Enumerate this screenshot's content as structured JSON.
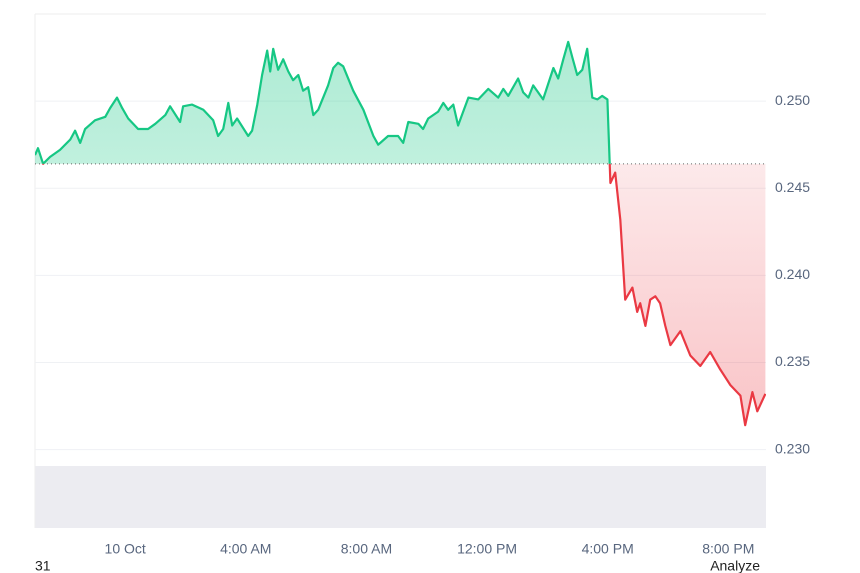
{
  "chart_data": {
    "type": "line",
    "x": [
      -2.99,
      -2.89,
      -2.72,
      -2.49,
      -2.16,
      -1.82,
      -1.66,
      -1.49,
      -1.33,
      -1.0,
      -0.66,
      -0.5,
      -0.27,
      -0.1,
      0.1,
      0.43,
      0.76,
      1.0,
      1.33,
      1.49,
      1.82,
      1.92,
      2.22,
      2.59,
      2.92,
      3.08,
      3.25,
      3.42,
      3.55,
      3.71,
      4.08,
      4.21,
      4.38,
      4.54,
      4.71,
      4.81,
      4.91,
      5.07,
      5.24,
      5.41,
      5.57,
      5.74,
      5.9,
      6.07,
      6.24,
      6.4,
      6.73,
      6.9,
      7.06,
      7.23,
      7.56,
      7.9,
      8.23,
      8.39,
      8.72,
      9.05,
      9.22,
      9.39,
      9.72,
      9.88,
      10.05,
      10.38,
      10.55,
      10.71,
      10.88,
      11.04,
      11.21,
      11.38,
      11.71,
      12.04,
      12.37,
      12.54,
      12.7,
      13.03,
      13.2,
      13.37,
      13.53,
      13.86,
      14.2,
      14.36,
      14.53,
      14.69,
      14.83,
      14.99,
      15.16,
      15.32,
      15.49,
      15.66,
      15.82,
      15.99,
      16.09,
      16.25,
      16.42,
      16.58,
      16.82,
      16.98,
      17.08,
      17.25,
      17.41,
      17.58,
      17.74,
      17.91,
      18.08,
      18.41,
      18.74,
      19.07,
      19.4,
      19.73,
      20.07,
      20.4,
      20.56,
      20.8,
      20.96,
      21.23
    ],
    "series": [
      {
        "values": [
          0.2469,
          0.2473,
          0.2464,
          0.2468,
          0.2472,
          0.2478,
          0.2483,
          0.2476,
          0.2484,
          0.2489,
          0.2491,
          0.2496,
          0.2502,
          0.2496,
          0.249,
          0.2484,
          0.2484,
          0.2487,
          0.2492,
          0.2497,
          0.2488,
          0.2497,
          0.2498,
          0.2495,
          0.2489,
          0.248,
          0.2484,
          0.2499,
          0.2486,
          0.249,
          0.248,
          0.2483,
          0.2498,
          0.2515,
          0.2529,
          0.2517,
          0.253,
          0.2518,
          0.2524,
          0.2517,
          0.2512,
          0.2515,
          0.2506,
          0.2508,
          0.2492,
          0.2495,
          0.2509,
          0.2519,
          0.2522,
          0.252,
          0.2506,
          0.2495,
          0.248,
          0.2475,
          0.248,
          0.248,
          0.2476,
          0.2488,
          0.2487,
          0.2484,
          0.249,
          0.2494,
          0.2499,
          0.2495,
          0.2498,
          0.2486,
          0.2494,
          0.2502,
          0.2501,
          0.2507,
          0.2502,
          0.2507,
          0.2503,
          0.2513,
          0.2505,
          0.2502,
          0.2509,
          0.2501,
          0.2519,
          0.2513,
          0.2524,
          0.2534,
          0.2525,
          0.2515,
          0.2518,
          0.253,
          0.2502,
          0.2501,
          0.2503,
          0.2501,
          0.2453,
          0.2459,
          0.2432,
          0.2386,
          0.2393,
          0.2379,
          0.2384,
          0.2371,
          0.2386,
          0.2388,
          0.2384,
          0.2371,
          0.236,
          0.2368,
          0.2354,
          0.2348,
          0.2356,
          0.2346,
          0.2337,
          0.2331,
          0.2314,
          0.2333,
          0.2322,
          0.2332
        ]
      }
    ],
    "baseline": 0.2464,
    "up_color": "#16c784",
    "down_color": "#ea3943",
    "xlim": [
      -2.99,
      21.25
    ],
    "xticks": [
      {
        "value": 0,
        "label": "10 Oct"
      },
      {
        "value": 4,
        "label": "4:00 AM"
      },
      {
        "value": 8,
        "label": "8:00 AM"
      },
      {
        "value": 12,
        "label": "12:00 PM"
      },
      {
        "value": 16,
        "label": "4:00 PM"
      },
      {
        "value": 20,
        "label": "8:00 PM"
      }
    ],
    "ylim": [
      0.2255,
      0.255
    ],
    "yticks": [
      {
        "value": 0.23,
        "label": "0.230"
      },
      0.235,
      {
        "value": 0.24,
        "label": "0.240"
      },
      0.245,
      {
        "value": 0.25,
        "label": "0.250"
      }
    ],
    "grid": true
  },
  "footer": {
    "left": "31",
    "right": "Analyze"
  }
}
